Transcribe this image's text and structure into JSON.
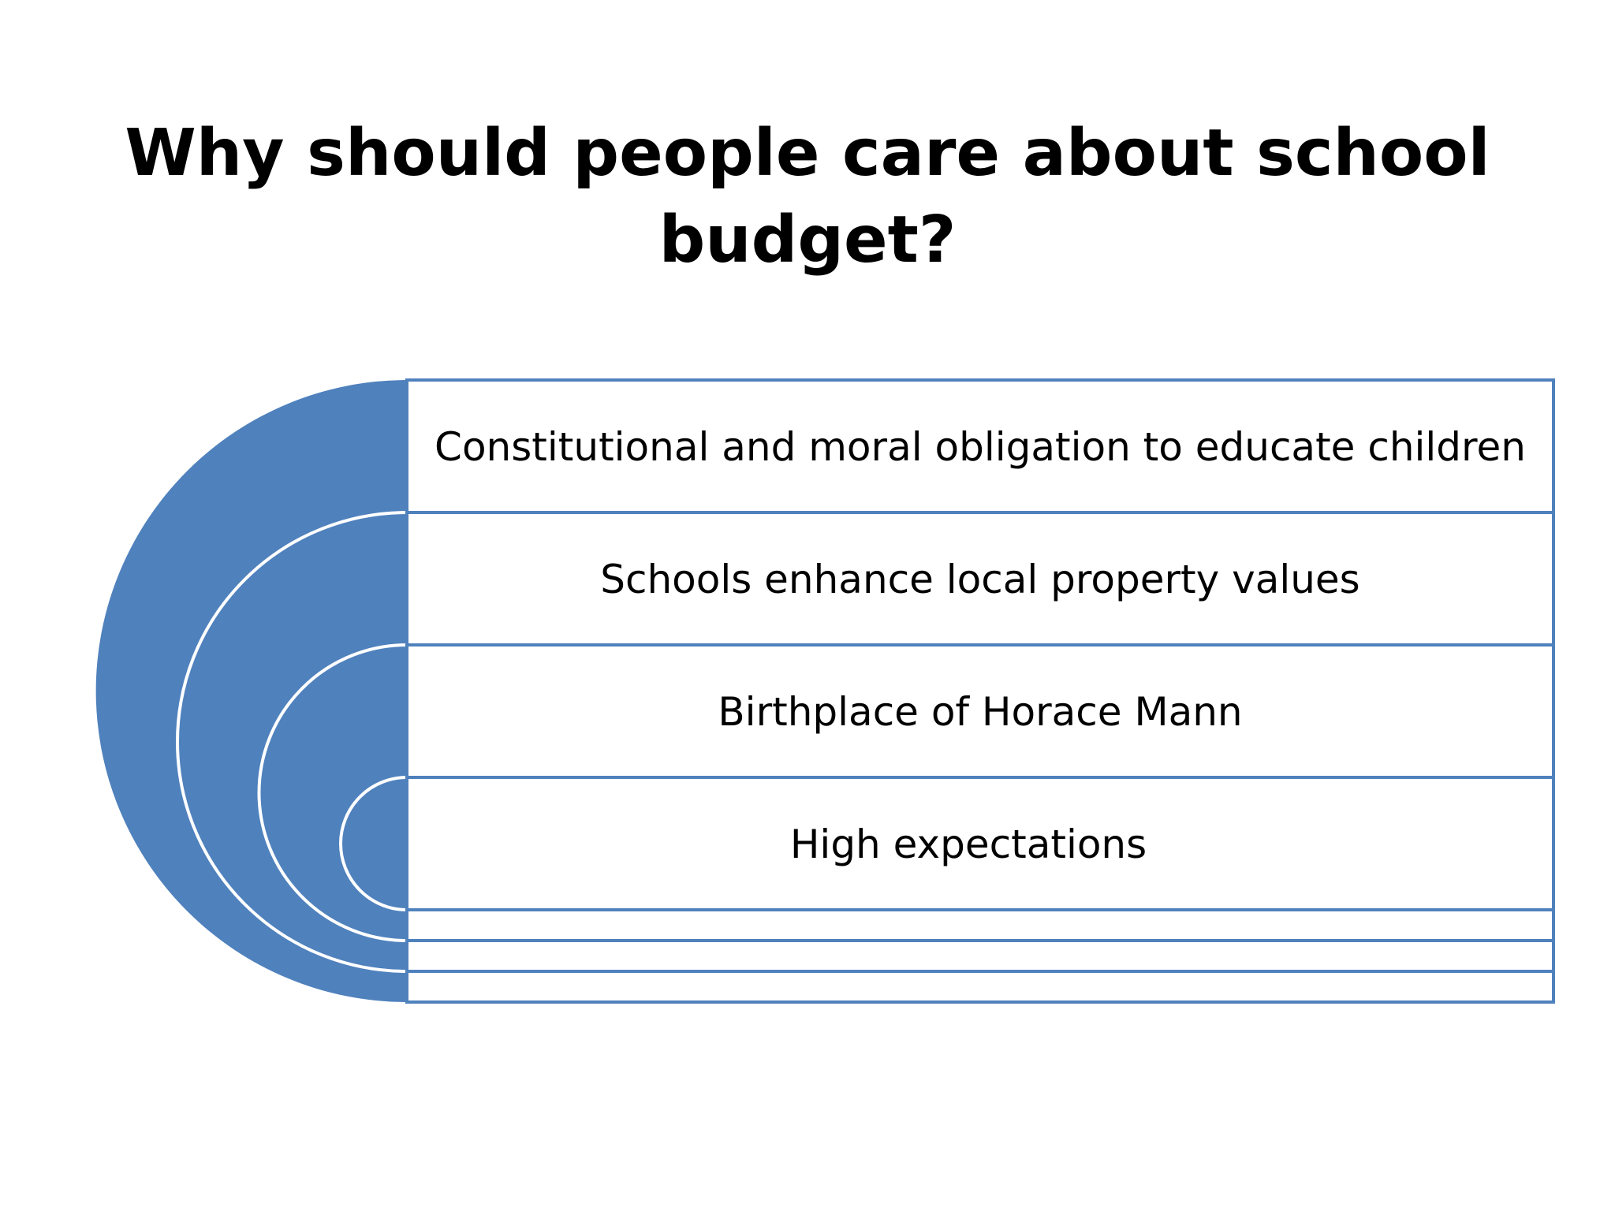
{
  "title": "Why should people care about school budget?",
  "colors": {
    "fill": "#4f81bd",
    "stroke": "#4f81bd",
    "ring_stroke": "#ffffff",
    "text": "#000000",
    "background": "#ffffff"
  },
  "layers": [
    {
      "label": "Constitutional and moral obligation to educate children"
    },
    {
      "label": "Schools enhance local property values"
    },
    {
      "label": "Birthplace of Horace Mann"
    },
    {
      "label": "High expectations"
    }
  ]
}
